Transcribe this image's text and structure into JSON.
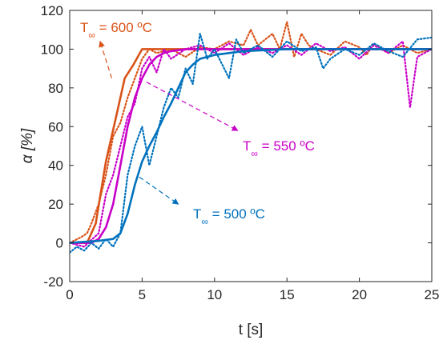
{
  "chart_data": {
    "type": "line",
    "xlabel": "t [s]",
    "ylabel": "α [%]",
    "xlim": [
      0,
      25
    ],
    "ylim": [
      -20,
      120
    ],
    "xticks": [
      0,
      5,
      10,
      15,
      20,
      25
    ],
    "yticks": [
      -20,
      0,
      20,
      40,
      60,
      80,
      100,
      120
    ],
    "grid": false,
    "series": [
      {
        "color": "#D95319",
        "style": "solid",
        "x": [
          0,
          1.2,
          1.8,
          2.5,
          3.2,
          3.8,
          4.4,
          5.0,
          5.5,
          7,
          10,
          15,
          20,
          25
        ],
        "y": [
          0,
          0,
          10,
          42,
          65,
          85,
          92,
          100,
          100,
          100,
          100,
          100,
          100,
          100
        ]
      },
      {
        "color": "#D95319",
        "style": "dotted",
        "x": [
          0,
          0.8,
          1.2,
          1.5,
          2.0,
          2.5,
          3.0,
          3.5,
          4.0,
          4.5,
          5.0,
          5.5,
          6.0,
          7.0,
          8.0,
          9.0,
          10.0,
          11.0,
          12.0,
          12.5,
          13.0,
          14.0,
          14.5,
          15.0,
          15.5,
          16.0,
          16.5,
          17.0,
          18.0,
          19.0,
          20.0,
          20.5,
          21.0,
          22.0,
          23.0,
          24.0,
          25.0
        ],
        "y": [
          0,
          3,
          5,
          10,
          20,
          35,
          55,
          62,
          75,
          85,
          95,
          100,
          98,
          100,
          96,
          101,
          100,
          104,
          102,
          110,
          102,
          108,
          100,
          114,
          96,
          108,
          102,
          100,
          97,
          104,
          101,
          97,
          103,
          98,
          102,
          98,
          100
        ]
      },
      {
        "color": "#C800C8",
        "style": "solid",
        "x": [
          0,
          1.5,
          2.0,
          2.5,
          3.0,
          3.5,
          4.0,
          4.5,
          5.0,
          5.5,
          6.0,
          6.5,
          7.0,
          8.0,
          10.0,
          15.0,
          20.0,
          25.0
        ],
        "y": [
          0,
          0,
          2,
          8,
          20,
          40,
          60,
          75,
          85,
          92,
          96,
          98,
          99,
          100,
          100,
          100,
          100,
          100
        ]
      },
      {
        "color": "#C800C8",
        "style": "dotted",
        "x": [
          0,
          1.0,
          2.0,
          2.5,
          3.0,
          3.5,
          4.0,
          4.5,
          5.0,
          5.5,
          6.0,
          6.5,
          7.0,
          8.0,
          9.0,
          10.0,
          11.0,
          12.0,
          13.0,
          14.0,
          15.0,
          16.0,
          17.0,
          18.0,
          19.0,
          20.0,
          21.0,
          22.0,
          23.0,
          23.5,
          24.0,
          25.0
        ],
        "y": [
          0,
          -2,
          5,
          25,
          35,
          50,
          65,
          72,
          90,
          96,
          88,
          100,
          95,
          100,
          102,
          98,
          103,
          97,
          101,
          98,
          102,
          97,
          103,
          99,
          101,
          95,
          102,
          98,
          104,
          70,
          96,
          100
        ]
      },
      {
        "color": "#0072BD",
        "style": "solid",
        "x": [
          0,
          2.0,
          3.0,
          3.5,
          4.0,
          4.5,
          5.0,
          5.5,
          6.0,
          6.5,
          7.0,
          7.5,
          8.0,
          8.5,
          9.0,
          10.0,
          12.0,
          15.0,
          20.0,
          25.0
        ],
        "y": [
          0,
          1,
          2,
          5,
          15,
          30,
          42,
          50,
          57,
          65,
          72,
          80,
          88,
          92,
          95,
          97,
          99,
          100,
          100,
          100
        ]
      },
      {
        "color": "#0072BD",
        "style": "dotted",
        "x": [
          0,
          0.5,
          1.0,
          1.5,
          2.0,
          2.5,
          3.0,
          3.5,
          4.0,
          4.5,
          5.0,
          5.5,
          6.0,
          6.5,
          7.0,
          7.5,
          8.0,
          8.5,
          9.0,
          9.5,
          10.0,
          11.0,
          11.5,
          12.0,
          13.0,
          14.0,
          15.0,
          16.0,
          17.0,
          17.5,
          18.0,
          19.0,
          20.0,
          21.0,
          22.0,
          23.0,
          24.0,
          25.0
        ],
        "y": [
          -5,
          -2,
          -4,
          0,
          -3,
          2,
          -2,
          5,
          35,
          50,
          60,
          40,
          55,
          70,
          80,
          75,
          90,
          82,
          108,
          95,
          100,
          85,
          105,
          98,
          102,
          96,
          104,
          99,
          101,
          90,
          95,
          100,
          97,
          103,
          99,
          96,
          105,
          106
        ]
      }
    ],
    "annotations": [
      {
        "text": "T",
        "sub": "∞",
        "rest": " = 600 ºC",
        "color": "#D95319",
        "from": [
          2.9,
          85
        ],
        "to": [
          2.1,
          104
        ]
      },
      {
        "text": "T",
        "sub": "∞",
        "rest": " = 550 ºC",
        "color": "#C800C8",
        "from": [
          5.3,
          83
        ],
        "to": [
          11.6,
          58
        ]
      },
      {
        "text": "T",
        "sub": "∞",
        "rest": " = 500 ºC",
        "color": "#0072BD",
        "from": [
          4.8,
          34
        ],
        "to": [
          7.5,
          20
        ]
      }
    ]
  }
}
